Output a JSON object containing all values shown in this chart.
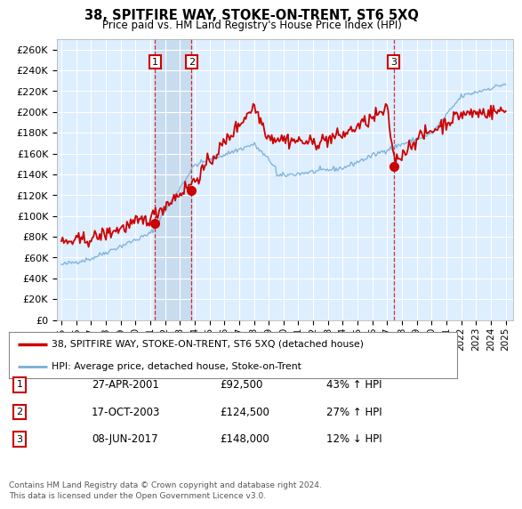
{
  "title": "38, SPITFIRE WAY, STOKE-ON-TRENT, ST6 5XQ",
  "subtitle": "Price paid vs. HM Land Registry's House Price Index (HPI)",
  "ylabel_ticks": [
    "£0",
    "£20K",
    "£40K",
    "£60K",
    "£80K",
    "£100K",
    "£120K",
    "£140K",
    "£160K",
    "£180K",
    "£200K",
    "£220K",
    "£240K",
    "£260K"
  ],
  "ytick_vals": [
    0,
    20000,
    40000,
    60000,
    80000,
    100000,
    120000,
    140000,
    160000,
    180000,
    200000,
    220000,
    240000,
    260000
  ],
  "ylim": [
    0,
    270000
  ],
  "xlim_start": 1994.7,
  "xlim_end": 2025.5,
  "hpi_color": "#7aaed6",
  "price_color": "#cc0000",
  "background_color": "#ffffff",
  "plot_bg_color": "#ddeeff",
  "grid_color": "#ffffff",
  "shade_color": "#c8dcf0",
  "sales": [
    {
      "year": 2001.32,
      "price": 92500,
      "label": "1"
    },
    {
      "year": 2003.79,
      "price": 124500,
      "label": "2"
    },
    {
      "year": 2017.44,
      "price": 148000,
      "label": "3"
    }
  ],
  "legend_line1": "38, SPITFIRE WAY, STOKE-ON-TRENT, ST6 5XQ (detached house)",
  "legend_line2": "HPI: Average price, detached house, Stoke-on-Trent",
  "table_rows": [
    {
      "num": "1",
      "date": "27-APR-2001",
      "price": "£92,500",
      "change": "43% ↑ HPI"
    },
    {
      "num": "2",
      "date": "17-OCT-2003",
      "price": "£124,500",
      "change": "27% ↑ HPI"
    },
    {
      "num": "3",
      "date": "08-JUN-2017",
      "price": "£148,000",
      "change": "12% ↓ HPI"
    }
  ],
  "footer1": "Contains HM Land Registry data © Crown copyright and database right 2024.",
  "footer2": "This data is licensed under the Open Government Licence v3.0.",
  "xtick_years": [
    1995,
    1996,
    1997,
    1998,
    1999,
    2000,
    2001,
    2002,
    2003,
    2004,
    2005,
    2006,
    2007,
    2008,
    2009,
    2010,
    2011,
    2012,
    2013,
    2014,
    2015,
    2016,
    2017,
    2018,
    2019,
    2020,
    2021,
    2022,
    2023,
    2024,
    2025
  ]
}
